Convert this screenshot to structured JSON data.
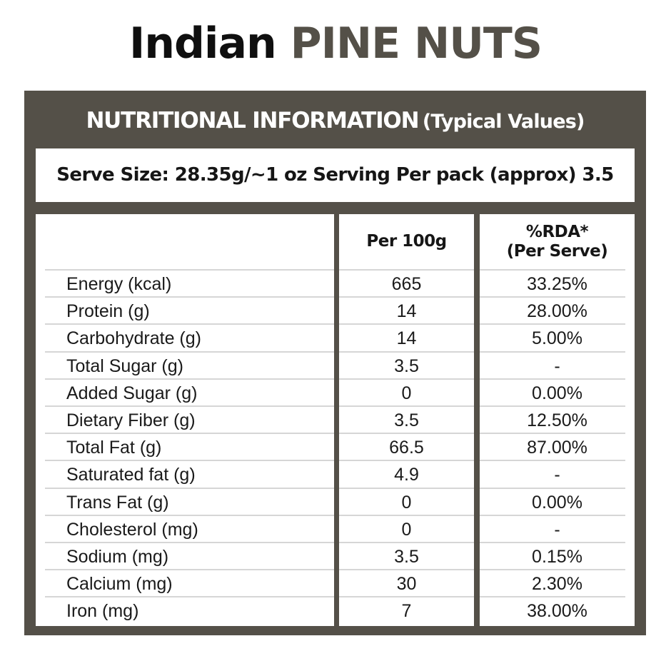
{
  "title": {
    "prefix": "Indian",
    "product": "PINE NUTS",
    "colors": {
      "prefix": "#0f0f0f",
      "product": "#545048"
    }
  },
  "panel": {
    "heading_main": "NUTRITIONAL INFORMATION",
    "heading_sub": "(Typical Values)",
    "serve_size": "Serve Size: 28.35g/~1 oz Serving Per pack (approx) 3.5",
    "frame_color": "#545048"
  },
  "table": {
    "columns": [
      {
        "label": ""
      },
      {
        "label": "Per 100g"
      },
      {
        "label_line1": "%RDA*",
        "label_line2": "(Per Serve)"
      }
    ],
    "rows": [
      {
        "nutrient": "Energy (kcal)",
        "per_100g": "665",
        "rda": "33.25%"
      },
      {
        "nutrient": "Protein (g)",
        "per_100g": "14",
        "rda": "28.00%"
      },
      {
        "nutrient": "Carbohydrate (g)",
        "per_100g": "14",
        "rda": "5.00%"
      },
      {
        "nutrient": "Total Sugar (g)",
        "per_100g": "3.5",
        "rda": "-"
      },
      {
        "nutrient": "Added Sugar (g)",
        "per_100g": "0",
        "rda": "0.00%"
      },
      {
        "nutrient": "Dietary Fiber (g)",
        "per_100g": "3.5",
        "rda": "12.50%"
      },
      {
        "nutrient": "Total Fat (g)",
        "per_100g": "66.5",
        "rda": "87.00%"
      },
      {
        "nutrient": "Saturated fat (g)",
        "per_100g": "4.9",
        "rda": "-"
      },
      {
        "nutrient": "Trans Fat (g)",
        "per_100g": "0",
        "rda": "0.00%"
      },
      {
        "nutrient": "Cholesterol (mg)",
        "per_100g": "0",
        "rda": "-"
      },
      {
        "nutrient": "Sodium (mg)",
        "per_100g": "3.5",
        "rda": "0.15%"
      },
      {
        "nutrient": "Calcium (mg)",
        "per_100g": "30",
        "rda": "2.30%"
      },
      {
        "nutrient": "Iron (mg)",
        "per_100g": "7",
        "rda": "38.00%"
      }
    ]
  }
}
